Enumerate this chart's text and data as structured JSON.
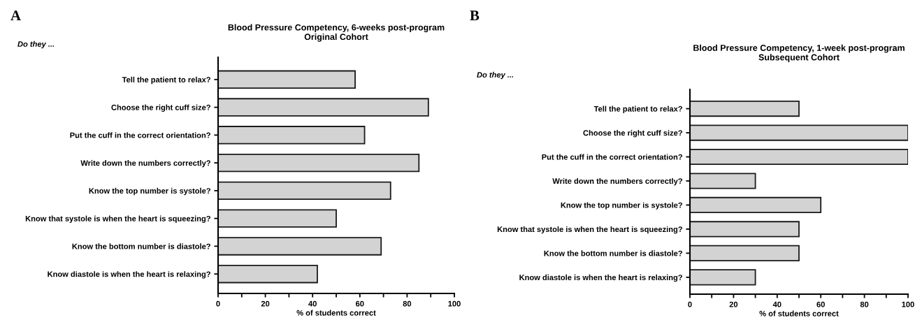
{
  "chart_data": [
    {
      "type": "bar",
      "orientation": "horizontal",
      "title": "Blood Pressure Competency, 6-weeks post-program\nOriginal Cohort",
      "xlabel": "% of students correct",
      "annotations": [
        "A",
        "Do they ..."
      ],
      "categories": [
        "Tell the patient to relax?",
        "Choose the right cuff size?",
        "Put the cuff in the correct orientation?",
        "Write down the numbers correctly?",
        "Know the top number is systole?",
        "Know that systole is when the heart is squeezing?",
        "Know the bottom number is diastole?",
        "Know diastole is when the heart is relaxing?"
      ],
      "values": [
        58,
        89,
        62,
        85,
        73,
        50,
        69,
        42
      ],
      "color": "#d3d3d3",
      "xlim": [
        0,
        100
      ],
      "xticks": [
        0,
        {
          "value": 10,
          "label": null
        },
        20,
        {
          "value": 30,
          "label": null
        },
        40,
        {
          "value": 50,
          "label": null
        },
        60,
        {
          "value": 70,
          "label": null
        },
        80,
        {
          "value": 90,
          "label": null
        },
        100
      ],
      "grid": false,
      "legend": false
    },
    {
      "type": "bar",
      "orientation": "horizontal",
      "title": "Blood Pressure Competency, 1-week post-program\nSubsequent Cohort",
      "xlabel": "% of students correct",
      "annotations": [
        "B",
        "Do they ..."
      ],
      "categories": [
        "Tell the patient to relax?",
        "Choose the right cuff size?",
        "Put the cuff in the correct orientation?",
        "Write down the numbers correctly?",
        "Know the top number is systole?",
        "Know that systole is when the heart is squeezing?",
        "Know the bottom number is diastole?",
        "Know diastole is when the heart is relaxing?"
      ],
      "values": [
        50,
        100,
        100,
        30,
        60,
        50,
        50,
        30
      ],
      "color": "#d3d3d3",
      "xlim": [
        0,
        100
      ],
      "xticks": [
        0,
        {
          "value": 10,
          "label": null
        },
        20,
        {
          "value": 30,
          "label": null
        },
        40,
        {
          "value": 50,
          "label": null
        },
        60,
        {
          "value": 70,
          "label": null
        },
        80,
        {
          "value": 90,
          "label": null
        },
        100
      ],
      "grid": false,
      "legend": false
    }
  ]
}
